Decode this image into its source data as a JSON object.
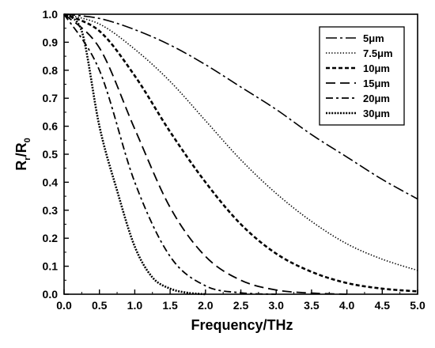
{
  "chart_data": {
    "type": "line",
    "title": "",
    "xlabel": "Frequency/THz",
    "ylabel": {
      "main": "R",
      "sub1": "r",
      "slash": "/R",
      "sub2": "0"
    },
    "xlim": [
      0,
      5
    ],
    "ylim": [
      0,
      1
    ],
    "x_ticks": [
      "0.0",
      "0.5",
      "1.0",
      "1.5",
      "2.0",
      "2.5",
      "3.0",
      "3.5",
      "4.0",
      "4.5",
      "5.0"
    ],
    "y_ticks": [
      "0.0",
      "0.1",
      "0.2",
      "0.3",
      "0.4",
      "0.5",
      "0.6",
      "0.7",
      "0.8",
      "0.9",
      "1.0"
    ],
    "grid": false,
    "legend_position": "top-right",
    "series": [
      {
        "name": "5μm",
        "dash": "dashdot-long",
        "x": [
          0,
          0.5,
          1.0,
          1.5,
          2.0,
          2.5,
          3.0,
          3.5,
          4.0,
          4.5,
          5.0
        ],
        "y": [
          1.0,
          0.985,
          0.945,
          0.89,
          0.82,
          0.74,
          0.66,
          0.57,
          0.49,
          0.41,
          0.34
        ]
      },
      {
        "name": "7.5μm",
        "dash": "dotted",
        "x": [
          0,
          0.5,
          1.0,
          1.5,
          2.0,
          2.5,
          3.0,
          3.5,
          4.0,
          4.5,
          5.0
        ],
        "y": [
          1.0,
          0.965,
          0.875,
          0.76,
          0.62,
          0.48,
          0.36,
          0.26,
          0.18,
          0.125,
          0.085
        ]
      },
      {
        "name": "10μm",
        "dash": "short-dash",
        "x": [
          0,
          0.5,
          1.0,
          1.5,
          2.0,
          2.5,
          3.0,
          3.5,
          4.0,
          4.5,
          5.0
        ],
        "y": [
          1.0,
          0.94,
          0.78,
          0.58,
          0.4,
          0.25,
          0.145,
          0.08,
          0.04,
          0.02,
          0.01
        ]
      },
      {
        "name": "15μm",
        "dash": "long-dash",
        "x": [
          0,
          0.5,
          1.0,
          1.5,
          2.0,
          2.5,
          3.0,
          3.5,
          4.0
        ],
        "y": [
          1.0,
          0.88,
          0.59,
          0.31,
          0.135,
          0.05,
          0.015,
          0.004,
          0.0
        ]
      },
      {
        "name": "20μm",
        "dash": "dashdot",
        "x": [
          0,
          0.5,
          1.0,
          1.5,
          2.0,
          2.5,
          3.0
        ],
        "y": [
          1.0,
          0.8,
          0.4,
          0.135,
          0.03,
          0.005,
          0.0
        ]
      },
      {
        "name": "30μm",
        "dash": "dense-dotted",
        "x": [
          0,
          0.25,
          0.5,
          0.75,
          1.0,
          1.25,
          1.5,
          1.75,
          2.0
        ],
        "y": [
          1.0,
          0.94,
          0.6,
          0.37,
          0.17,
          0.06,
          0.02,
          0.005,
          0.0
        ]
      }
    ]
  }
}
